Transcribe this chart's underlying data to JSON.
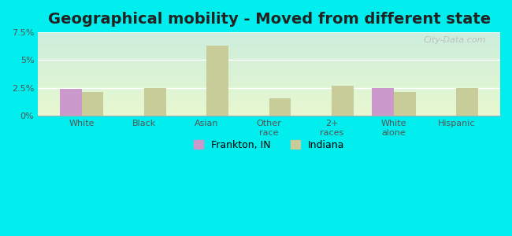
{
  "title": "Geographical mobility - Moved from different state",
  "categories": [
    "White",
    "Black",
    "Asian",
    "Other\nrace",
    "2+\nraces",
    "White\nalone",
    "Hispanic"
  ],
  "frankton_values": [
    2.4,
    0,
    0,
    0,
    0,
    2.5,
    0
  ],
  "indiana_values": [
    2.1,
    2.45,
    6.3,
    1.6,
    2.7,
    2.1,
    2.5
  ],
  "frankton_color": "#cc99cc",
  "indiana_color": "#c8cc99",
  "ylim": [
    0,
    7.5
  ],
  "yticks": [
    0,
    2.5,
    5.0,
    7.5
  ],
  "ytick_labels": [
    "0%",
    "2.5%",
    "5%",
    "7.5%"
  ],
  "outer_background": "#00eeee",
  "bar_width": 0.35,
  "title_fontsize": 14,
  "legend_frankton": "Frankton, IN",
  "legend_indiana": "Indiana"
}
